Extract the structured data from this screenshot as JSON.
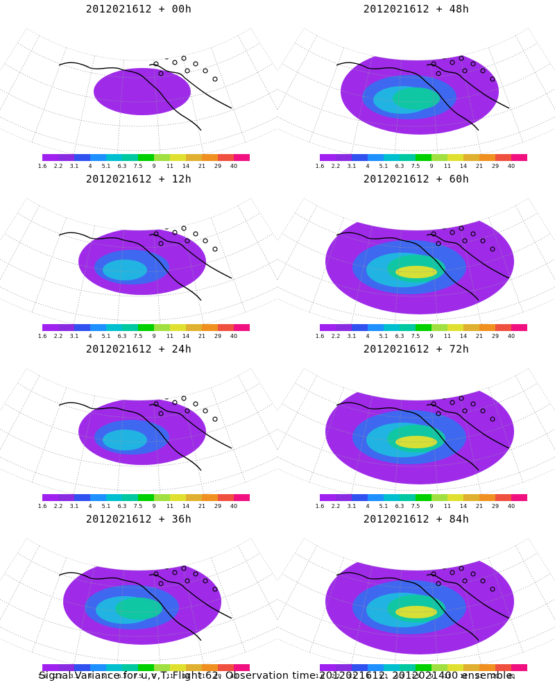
{
  "footer": "Signal Variance for u,v,T. Flight 62. Observation time 2012021612. 2012021400 ensemble.",
  "colorbar": {
    "colors": [
      "#a020f0",
      "#8a2be2",
      "#3050f0",
      "#1e90ff",
      "#00c0d0",
      "#00c8a0",
      "#00d000",
      "#a0e040",
      "#e0e030",
      "#e0b030",
      "#f09020",
      "#f05040",
      "#f01080"
    ],
    "labels": [
      "1.6",
      "2.2",
      "3.1",
      "4",
      "5.1",
      "6.3",
      "7.5",
      "9",
      "11",
      "14",
      "21",
      "29",
      "40"
    ]
  },
  "panels": [
    {
      "title": "2012021612 + 00h",
      "level": 0
    },
    {
      "title": "2012021612 + 48h",
      "level": 2
    },
    {
      "title": "2012021612 + 12h",
      "level": 1
    },
    {
      "title": "2012021612 + 60h",
      "level": 3
    },
    {
      "title": "2012021612 + 24h",
      "level": 1
    },
    {
      "title": "2012021612 + 72h",
      "level": 3
    },
    {
      "title": "2012021612 + 36h",
      "level": 2
    },
    {
      "title": "2012021612 + 84h",
      "level": 3
    }
  ]
}
